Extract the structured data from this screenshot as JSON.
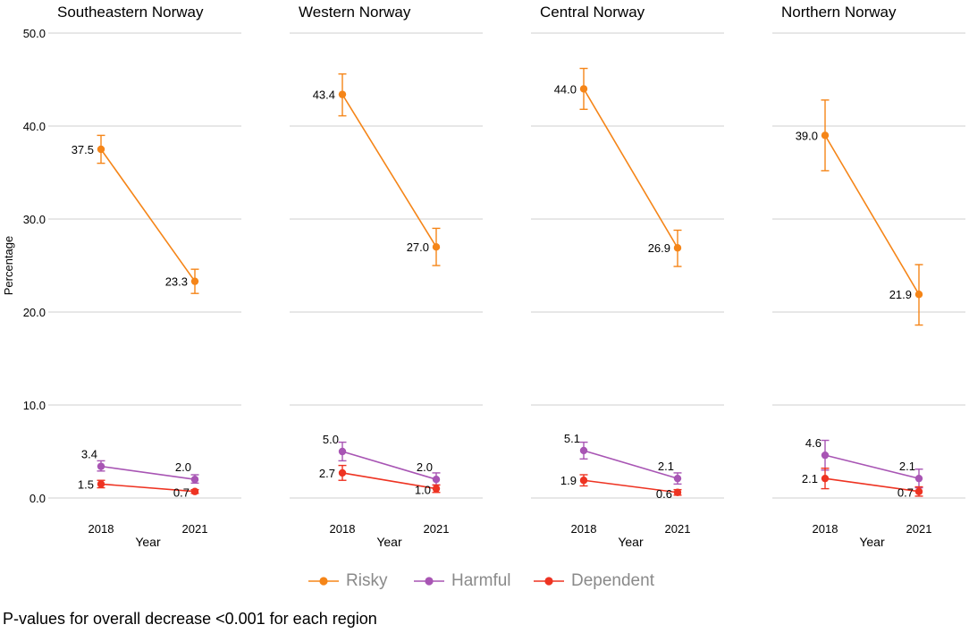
{
  "chart_data": {
    "type": "line",
    "ylabel": "Percentage",
    "xlabel": "Year",
    "ylim": [
      0,
      50
    ],
    "yticks": [
      "0.0",
      "10.0",
      "20.0",
      "30.0",
      "40.0",
      "50.0"
    ],
    "ytick_values": [
      0,
      10,
      20,
      30,
      40,
      50
    ],
    "x": [
      "2018",
      "2021"
    ],
    "series_meta": [
      {
        "name": "Risky",
        "color": "#f58518"
      },
      {
        "name": "Harmful",
        "color": "#a855b4"
      },
      {
        "name": "Dependent",
        "color": "#ee3322"
      }
    ],
    "panels": [
      {
        "title": "Southeastern Norway",
        "series": [
          {
            "name": "Risky",
            "values": [
              37.5,
              23.3
            ],
            "labels": [
              "37.5",
              "23.3"
            ],
            "lower": [
              36.0,
              22.0
            ],
            "upper": [
              39.0,
              24.6
            ]
          },
          {
            "name": "Harmful",
            "values": [
              3.4,
              2.0
            ],
            "labels": [
              "3.4",
              "2.0"
            ],
            "lower": [
              2.9,
              1.6
            ],
            "upper": [
              4.0,
              2.5
            ]
          },
          {
            "name": "Dependent",
            "values": [
              1.5,
              0.7
            ],
            "labels": [
              "1.5",
              "0.7"
            ],
            "lower": [
              1.1,
              0.5
            ],
            "upper": [
              1.9,
              0.9
            ]
          }
        ]
      },
      {
        "title": "Western Norway",
        "series": [
          {
            "name": "Risky",
            "values": [
              43.4,
              27.0
            ],
            "labels": [
              "43.4",
              "27.0"
            ],
            "lower": [
              41.1,
              25.0
            ],
            "upper": [
              45.6,
              29.0
            ]
          },
          {
            "name": "Harmful",
            "values": [
              5.0,
              2.0
            ],
            "labels": [
              "5.0",
              "2.0"
            ],
            "lower": [
              4.0,
              1.4
            ],
            "upper": [
              6.0,
              2.7
            ]
          },
          {
            "name": "Dependent",
            "values": [
              2.7,
              1.0
            ],
            "labels": [
              "2.7",
              "1.0"
            ],
            "lower": [
              1.9,
              0.6
            ],
            "upper": [
              3.5,
              1.4
            ]
          }
        ]
      },
      {
        "title": "Central Norway",
        "series": [
          {
            "name": "Risky",
            "values": [
              44.0,
              26.9
            ],
            "labels": [
              "44.0",
              "26.9"
            ],
            "lower": [
              41.8,
              24.9
            ],
            "upper": [
              46.2,
              28.8
            ]
          },
          {
            "name": "Harmful",
            "values": [
              5.1,
              2.1
            ],
            "labels": [
              "5.1",
              "2.1"
            ],
            "lower": [
              4.2,
              1.5
            ],
            "upper": [
              6.0,
              2.7
            ]
          },
          {
            "name": "Dependent",
            "values": [
              1.9,
              0.6
            ],
            "labels": [
              "1.9",
              "0.6"
            ],
            "lower": [
              1.3,
              0.3
            ],
            "upper": [
              2.5,
              0.9
            ]
          }
        ]
      },
      {
        "title": "Northern Norway",
        "series": [
          {
            "name": "Risky",
            "values": [
              39.0,
              21.9
            ],
            "labels": [
              "39.0",
              "21.9"
            ],
            "lower": [
              35.2,
              18.6
            ],
            "upper": [
              42.8,
              25.1
            ]
          },
          {
            "name": "Harmful",
            "values": [
              4.6,
              2.1
            ],
            "labels": [
              "4.6",
              "2.1"
            ],
            "lower": [
              3.0,
              1.1
            ],
            "upper": [
              6.2,
              3.1
            ]
          },
          {
            "name": "Dependent",
            "values": [
              2.1,
              0.7
            ],
            "labels": [
              "2.1",
              "0.7"
            ],
            "lower": [
              1.0,
              0.2
            ],
            "upper": [
              3.2,
              1.2
            ]
          }
        ]
      }
    ]
  },
  "legend": {
    "items": [
      {
        "label": "Risky",
        "color": "#f58518"
      },
      {
        "label": "Harmful",
        "color": "#a855b4"
      },
      {
        "label": "Dependent",
        "color": "#ee3322"
      }
    ]
  },
  "footnote": "P-values for overall decrease <0.001 for each region"
}
